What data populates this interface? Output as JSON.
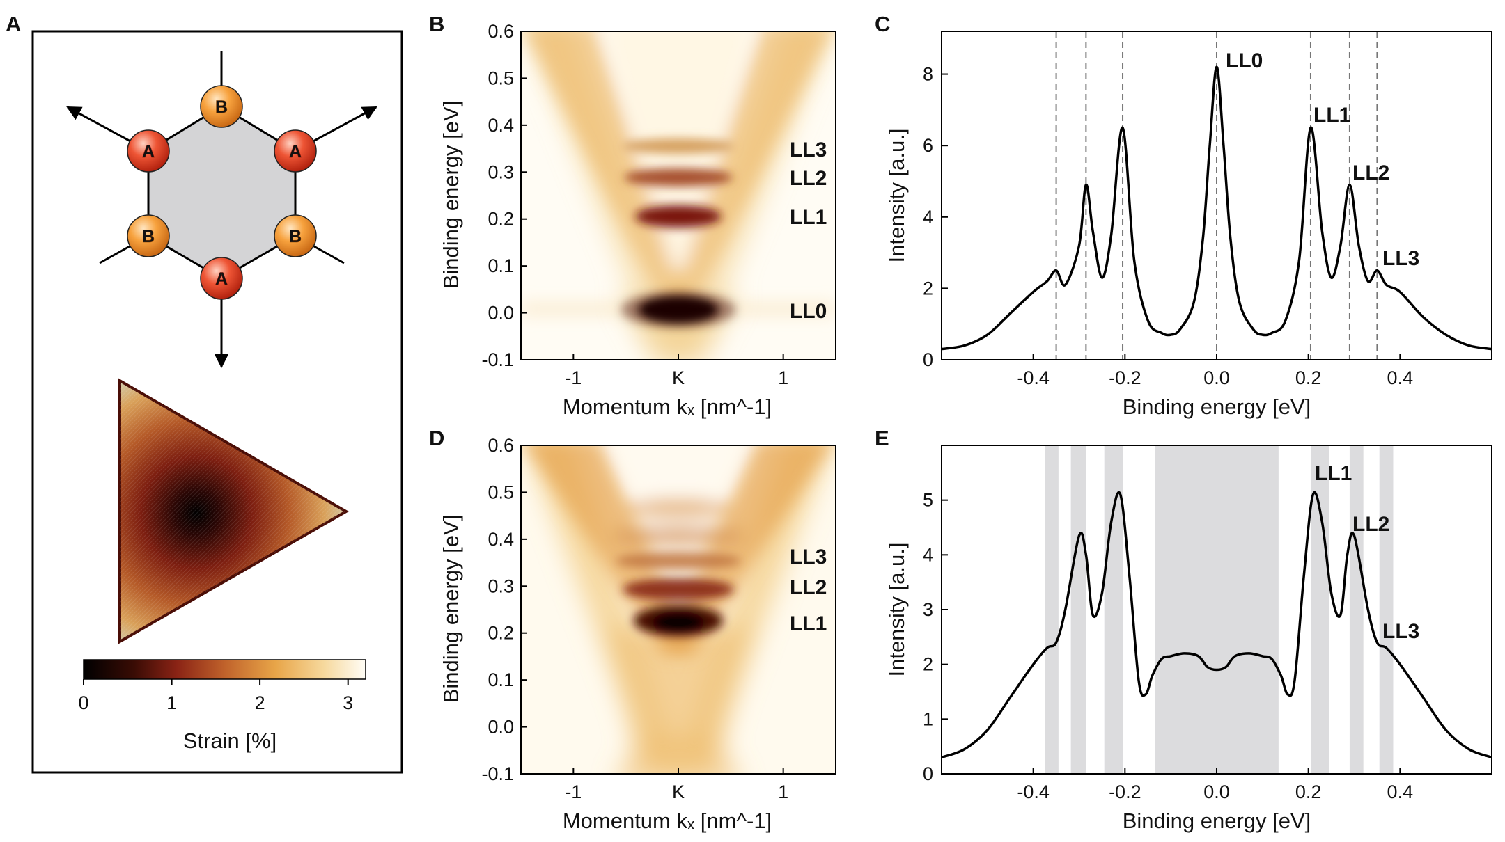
{
  "panels": [
    "A",
    "B",
    "C",
    "D",
    "E"
  ],
  "panel_a": {
    "atoms": [
      {
        "label": "B",
        "kind": "B"
      },
      {
        "label": "A",
        "kind": "A"
      },
      {
        "label": "A",
        "kind": "A"
      },
      {
        "label": "B",
        "kind": "B"
      },
      {
        "label": "B",
        "kind": "B"
      },
      {
        "label": "A",
        "kind": "A"
      }
    ],
    "colorbar": {
      "ticks": [
        "0",
        "1",
        "2",
        "3"
      ],
      "label": "Strain [%]",
      "range": [
        0,
        3.2
      ]
    },
    "colors": {
      "atom_a": "#e8452a",
      "atom_b": "#f59d3b",
      "hexagon": "#d4d4d6"
    }
  },
  "panel_b": {
    "ylabel": "Binding energy [eV]",
    "xlabel": "Momentum kₓ [nm^-1]",
    "yticks": [
      "0.6",
      "0.5",
      "0.4",
      "0.3",
      "0.2",
      "0.1",
      "0.0",
      "-0.1"
    ],
    "xticks": [
      "-1",
      "K",
      "1"
    ],
    "levels": [
      "LL3",
      "LL2",
      "LL1",
      "LL0"
    ]
  },
  "panel_d": {
    "ylabel": "Binding energy [eV]",
    "xlabel": "Momentum kₓ [nm^-1]",
    "yticks": [
      "0.6",
      "0.5",
      "0.4",
      "0.3",
      "0.2",
      "0.1",
      "0.0",
      "-0.1"
    ],
    "xticks": [
      "-1",
      "K",
      "1"
    ],
    "levels": [
      "LL3",
      "LL2",
      "LL1"
    ]
  },
  "chart_data": [
    {
      "panel": "C",
      "type": "line",
      "xlabel": "Binding energy [eV]",
      "ylabel": "Intensity [a.u.]",
      "xlim": [
        -0.6,
        0.6
      ],
      "ylim": [
        0,
        9.2
      ],
      "xticks": [
        "-0.4",
        "-0.2",
        "0.0",
        "0.2",
        "0.4"
      ],
      "yticks": [
        "0",
        "2",
        "4",
        "6",
        "8"
      ],
      "dashed_lines": [
        -0.35,
        -0.285,
        -0.205,
        0.0,
        0.205,
        0.29,
        0.35
      ],
      "annotations": [
        "LL0",
        "LL1",
        "LL2",
        "LL3"
      ],
      "x": [
        -0.6,
        -0.55,
        -0.5,
        -0.45,
        -0.4,
        -0.37,
        -0.35,
        -0.33,
        -0.3,
        -0.285,
        -0.27,
        -0.25,
        -0.23,
        -0.205,
        -0.18,
        -0.15,
        -0.12,
        -0.1,
        -0.08,
        -0.05,
        -0.03,
        -0.015,
        0.0,
        0.015,
        0.03,
        0.05,
        0.08,
        0.1,
        0.12,
        0.15,
        0.18,
        0.205,
        0.23,
        0.25,
        0.27,
        0.29,
        0.31,
        0.33,
        0.35,
        0.37,
        0.4,
        0.45,
        0.5,
        0.55,
        0.6
      ],
      "y": [
        0.3,
        0.4,
        0.7,
        1.3,
        1.9,
        2.2,
        2.5,
        2.1,
        3.2,
        4.9,
        3.6,
        2.3,
        3.5,
        6.5,
        2.8,
        1.1,
        0.75,
        0.7,
        0.85,
        1.6,
        3.4,
        6.0,
        8.2,
        6.0,
        3.4,
        1.6,
        0.85,
        0.7,
        0.75,
        1.1,
        2.8,
        6.5,
        3.6,
        2.3,
        3.2,
        4.9,
        3.2,
        2.2,
        2.5,
        2.1,
        1.9,
        1.2,
        0.7,
        0.4,
        0.3
      ]
    },
    {
      "panel": "E",
      "type": "line",
      "xlabel": "Binding energy [eV]",
      "ylabel": "Intensity [a.u.]",
      "xlim": [
        -0.6,
        0.6
      ],
      "ylim": [
        0,
        6.0
      ],
      "xticks": [
        "-0.4",
        "-0.2",
        "0.0",
        "0.2",
        "0.4"
      ],
      "yticks": [
        "0",
        "1",
        "2",
        "3",
        "4",
        "5"
      ],
      "shaded_bands": [
        [
          -0.375,
          -0.345
        ],
        [
          -0.318,
          -0.285
        ],
        [
          -0.245,
          -0.205
        ],
        [
          -0.135,
          0.135
        ],
        [
          0.205,
          0.245
        ],
        [
          0.29,
          0.32
        ],
        [
          0.355,
          0.385
        ]
      ],
      "annotations": [
        "LL1",
        "LL2",
        "LL3"
      ],
      "x": [
        -0.6,
        -0.55,
        -0.5,
        -0.45,
        -0.4,
        -0.37,
        -0.35,
        -0.33,
        -0.3,
        -0.285,
        -0.27,
        -0.25,
        -0.23,
        -0.21,
        -0.19,
        -0.17,
        -0.155,
        -0.14,
        -0.12,
        -0.1,
        -0.07,
        -0.04,
        -0.02,
        0.0,
        0.02,
        0.04,
        0.07,
        0.1,
        0.12,
        0.14,
        0.155,
        0.17,
        0.19,
        0.21,
        0.23,
        0.25,
        0.27,
        0.285,
        0.3,
        0.33,
        0.35,
        0.37,
        0.4,
        0.45,
        0.5,
        0.55,
        0.6
      ],
      "y": [
        0.3,
        0.45,
        0.8,
        1.4,
        2.0,
        2.3,
        2.4,
        3.0,
        4.35,
        4.0,
        2.9,
        3.3,
        4.6,
        5.1,
        3.6,
        1.7,
        1.45,
        1.8,
        2.1,
        2.15,
        2.2,
        2.15,
        1.95,
        1.9,
        1.95,
        2.15,
        2.2,
        2.15,
        2.1,
        1.8,
        1.45,
        1.7,
        3.6,
        5.1,
        4.6,
        3.3,
        2.9,
        4.0,
        4.35,
        3.0,
        2.4,
        2.3,
        2.0,
        1.4,
        0.8,
        0.45,
        0.3
      ]
    }
  ]
}
